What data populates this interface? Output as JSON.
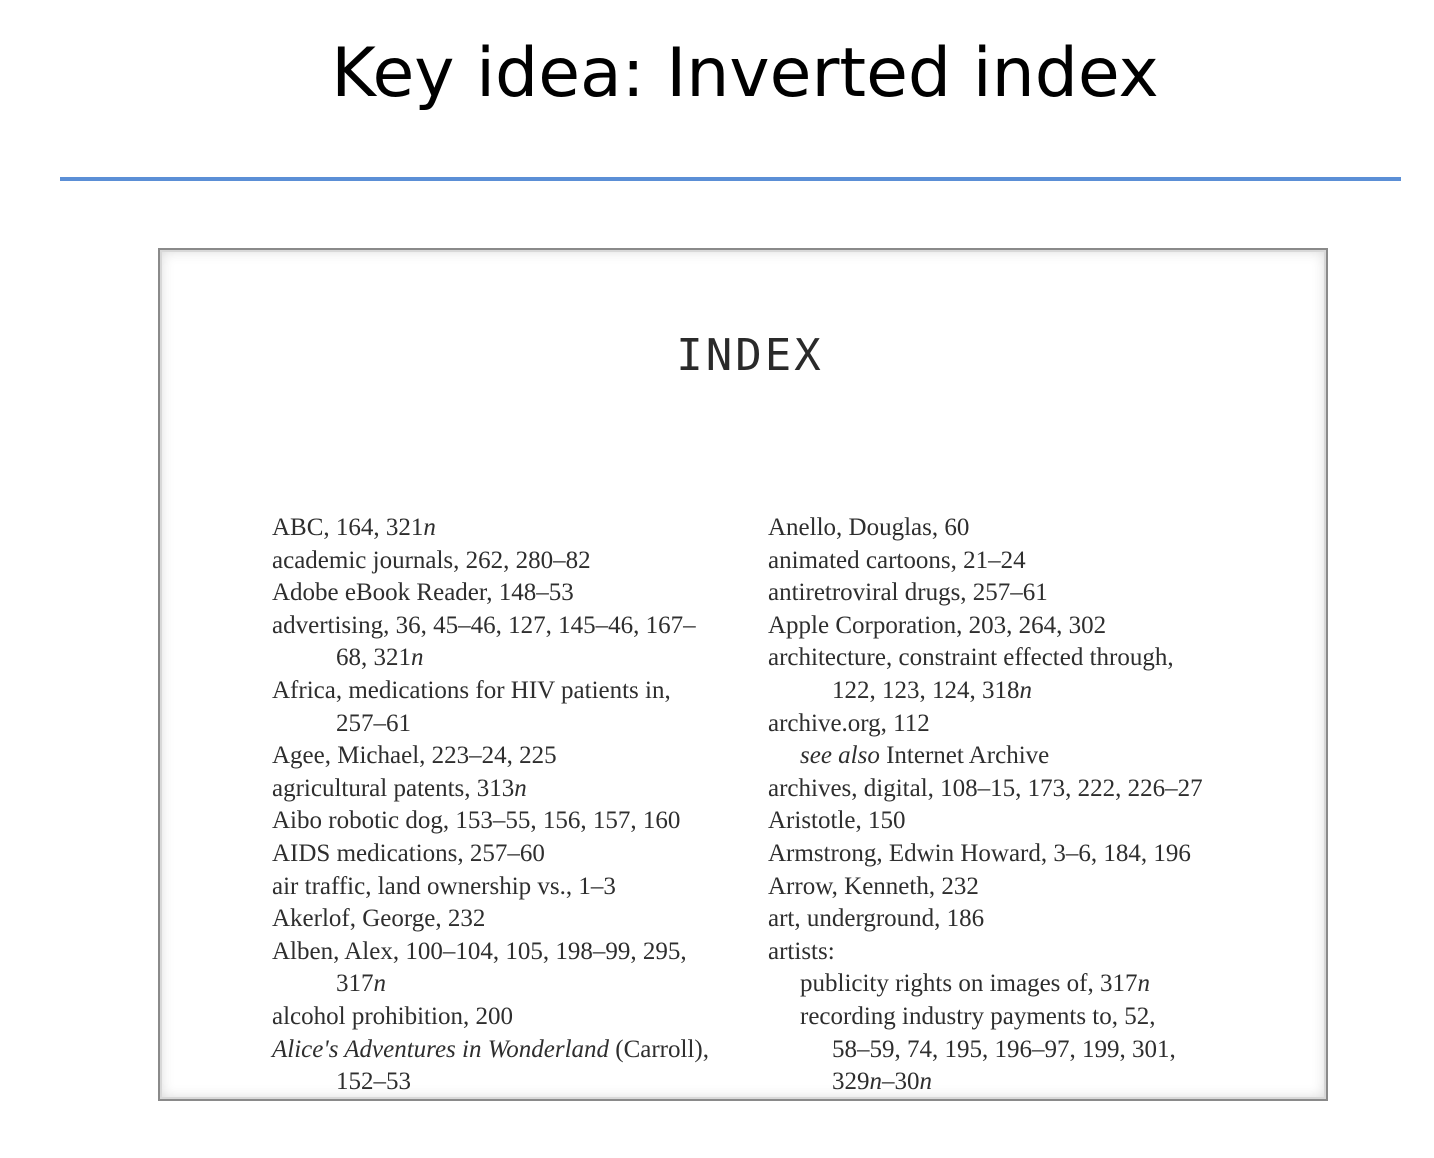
{
  "slide": {
    "title": "Key idea: Inverted index"
  },
  "page": {
    "heading": "INDEX",
    "left_column": [
      {
        "parts": [
          {
            "text": "ABC, 164, 321"
          },
          {
            "text": "n",
            "italic": true
          }
        ],
        "indent": 0
      },
      {
        "parts": [
          {
            "text": "academic journals, 262, 280–82"
          }
        ],
        "indent": 0
      },
      {
        "parts": [
          {
            "text": "Adobe eBook Reader, 148–53"
          }
        ],
        "indent": 0
      },
      {
        "parts": [
          {
            "text": "advertising, 36, 45–46, 127, 145–46, 167–"
          }
        ],
        "indent": 0
      },
      {
        "parts": [
          {
            "text": "68, 321"
          },
          {
            "text": "n",
            "italic": true
          }
        ],
        "indent": 2
      },
      {
        "parts": [
          {
            "text": "Africa, medications for HIV patients in,"
          }
        ],
        "indent": 0
      },
      {
        "parts": [
          {
            "text": "257–61"
          }
        ],
        "indent": 2
      },
      {
        "parts": [
          {
            "text": "Agee, Michael, 223–24, 225"
          }
        ],
        "indent": 0
      },
      {
        "parts": [
          {
            "text": "agricultural patents, 313"
          },
          {
            "text": "n",
            "italic": true
          }
        ],
        "indent": 0
      },
      {
        "parts": [
          {
            "text": "Aibo robotic dog, 153–55, 156, 157, 160"
          }
        ],
        "indent": 0
      },
      {
        "parts": [
          {
            "text": "AIDS medications, 257–60"
          }
        ],
        "indent": 0
      },
      {
        "parts": [
          {
            "text": "air traffic, land ownership vs., 1–3"
          }
        ],
        "indent": 0
      },
      {
        "parts": [
          {
            "text": "Akerlof, George, 232"
          }
        ],
        "indent": 0
      },
      {
        "parts": [
          {
            "text": "Alben, Alex, 100–104, 105, 198–99, 295,"
          }
        ],
        "indent": 0
      },
      {
        "parts": [
          {
            "text": "317"
          },
          {
            "text": "n",
            "italic": true
          }
        ],
        "indent": 2
      },
      {
        "parts": [
          {
            "text": "alcohol prohibition, 200"
          }
        ],
        "indent": 0
      },
      {
        "parts": [
          {
            "text": "Alice's Adventures in Wonderland",
            "italic": true
          },
          {
            "text": " (Carroll),"
          }
        ],
        "indent": 0
      },
      {
        "parts": [
          {
            "text": "152–53"
          }
        ],
        "indent": 2
      }
    ],
    "right_column": [
      {
        "parts": [
          {
            "text": "Anello, Douglas, 60"
          }
        ],
        "indent": 0
      },
      {
        "parts": [
          {
            "text": "animated cartoons, 21–24"
          }
        ],
        "indent": 0
      },
      {
        "parts": [
          {
            "text": "antiretroviral drugs, 257–61"
          }
        ],
        "indent": 0
      },
      {
        "parts": [
          {
            "text": "Apple Corporation, 203, 264, 302"
          }
        ],
        "indent": 0
      },
      {
        "parts": [
          {
            "text": "architecture, constraint effected through,"
          }
        ],
        "indent": 0
      },
      {
        "parts": [
          {
            "text": "122, 123, 124, 318"
          },
          {
            "text": "n",
            "italic": true
          }
        ],
        "indent": 2
      },
      {
        "parts": [
          {
            "text": "archive.org, 112"
          }
        ],
        "indent": 0
      },
      {
        "parts": [
          {
            "text": "see also",
            "italic": true
          },
          {
            "text": " Internet Archive"
          }
        ],
        "indent": 1
      },
      {
        "parts": [
          {
            "text": "archives, digital, 108–15, 173, 222, 226–27"
          }
        ],
        "indent": 0
      },
      {
        "parts": [
          {
            "text": "Aristotle, 150"
          }
        ],
        "indent": 0
      },
      {
        "parts": [
          {
            "text": "Armstrong, Edwin Howard, 3–6, 184, 196"
          }
        ],
        "indent": 0
      },
      {
        "parts": [
          {
            "text": "Arrow, Kenneth, 232"
          }
        ],
        "indent": 0
      },
      {
        "parts": [
          {
            "text": "art, underground, 186"
          }
        ],
        "indent": 0
      },
      {
        "parts": [
          {
            "text": "artists:"
          }
        ],
        "indent": 0
      },
      {
        "parts": [
          {
            "text": "publicity rights on images of, 317"
          },
          {
            "text": "n",
            "italic": true
          }
        ],
        "indent": 1
      },
      {
        "parts": [
          {
            "text": "recording industry payments to, 52,"
          }
        ],
        "indent": 1
      },
      {
        "parts": [
          {
            "text": "58–59, 74, 195, 196–97, 199, 301,"
          }
        ],
        "indent": 2
      },
      {
        "parts": [
          {
            "text": "329"
          },
          {
            "text": "n",
            "italic": true
          },
          {
            "text": "–30"
          },
          {
            "text": "n",
            "italic": true
          }
        ],
        "indent": 2
      }
    ]
  }
}
